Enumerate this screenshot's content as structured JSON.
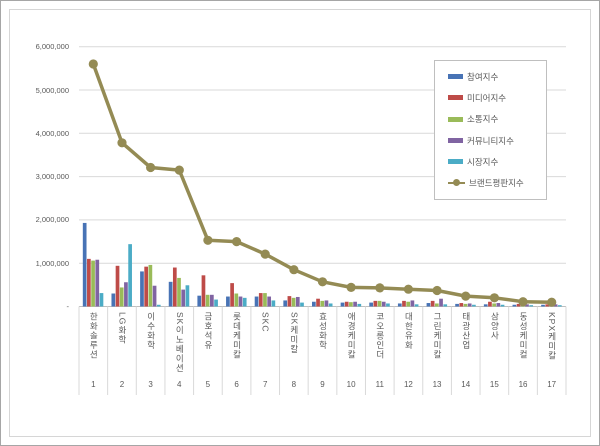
{
  "chart_data": {
    "type": "bar",
    "overlay": "line",
    "title": "",
    "categories": [
      "한화솔루션",
      "LG화학",
      "이수화학",
      "SK이노베이션",
      "금호석유",
      "롯데케미칼",
      "SKC",
      "SK케미칼",
      "효성화학",
      "애경케미칼",
      "코오롱인더",
      "대한유화",
      "그린케미칼",
      "태광산업",
      "삼양사",
      "동성케미컬",
      "KPX케미칼"
    ],
    "ranks": [
      "1",
      "2",
      "3",
      "4",
      "5",
      "6",
      "7",
      "8",
      "9",
      "10",
      "11",
      "12",
      "13",
      "14",
      "15",
      "16",
      "17"
    ],
    "series": [
      {
        "name": "참여지수",
        "key": "participation-index",
        "type": "bar",
        "color": "#4873b5",
        "values": [
          1930000,
          300000,
          810000,
          570000,
          250000,
          230000,
          230000,
          140000,
          110000,
          90000,
          90000,
          70000,
          80000,
          60000,
          50000,
          40000,
          40000
        ]
      },
      {
        "name": "미디어지수",
        "key": "media-index",
        "type": "bar",
        "color": "#be4b48",
        "values": [
          1100000,
          940000,
          920000,
          900000,
          720000,
          540000,
          310000,
          240000,
          180000,
          110000,
          130000,
          130000,
          130000,
          80000,
          110000,
          60000,
          50000
        ]
      },
      {
        "name": "소통지수",
        "key": "communication-index",
        "type": "bar",
        "color": "#9abb59",
        "values": [
          1060000,
          440000,
          960000,
          660000,
          270000,
          300000,
          310000,
          200000,
          130000,
          100000,
          130000,
          110000,
          70000,
          60000,
          70000,
          50000,
          40000
        ]
      },
      {
        "name": "커뮤니티지수",
        "key": "community-index",
        "type": "bar",
        "color": "#8064a2",
        "values": [
          1080000,
          560000,
          480000,
          390000,
          270000,
          230000,
          230000,
          220000,
          140000,
          110000,
          110000,
          140000,
          180000,
          70000,
          80000,
          50000,
          50000
        ]
      },
      {
        "name": "시장지수",
        "key": "market-index",
        "type": "bar",
        "color": "#4bacc6",
        "values": [
          310000,
          1440000,
          40000,
          490000,
          160000,
          200000,
          140000,
          90000,
          70000,
          60000,
          70000,
          50000,
          50000,
          40000,
          40000,
          30000,
          30000
        ]
      },
      {
        "name": "브랜드평판지수",
        "key": "brand-reputation-index",
        "type": "line",
        "color": "#948b54",
        "values": [
          5600000,
          3780000,
          3210000,
          3150000,
          1530000,
          1500000,
          1210000,
          850000,
          570000,
          440000,
          430000,
          400000,
          370000,
          240000,
          200000,
          110000,
          100000
        ]
      }
    ],
    "y_axis": {
      "tick_labels": [
        "6,000,000",
        "5,000,000",
        "4,000,000",
        "3,000,000",
        "2,000,000",
        "1,000,000",
        "-"
      ],
      "tick_values": [
        6000000,
        5000000,
        4000000,
        3000000,
        2000000,
        1000000,
        0
      ],
      "min": 0,
      "max": 6000000,
      "grid": true
    },
    "legend": {
      "position": "top-right",
      "border": true
    }
  },
  "colors": {
    "grid": "#d9d9d9",
    "axis": "#bfbfbf",
    "text": "#595959",
    "frame_border": "#d6d6d6",
    "legend_border": "#bfbfbf",
    "background": "#ffffff"
  }
}
